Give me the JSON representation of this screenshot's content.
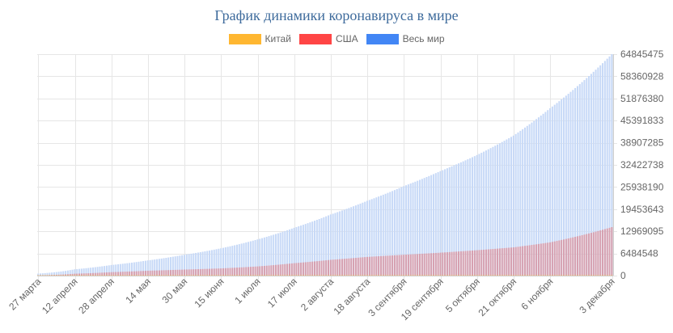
{
  "chart_data": {
    "type": "bar",
    "stacked": false,
    "title": "График динамики коронавируса в мире",
    "legend_position": "top",
    "grid": true,
    "ylim": [
      0,
      64845475
    ],
    "y_ticks": [
      0,
      6484548,
      12969095,
      19453643,
      25938190,
      32422738,
      38907285,
      45391833,
      51876380,
      58360928,
      64845475
    ],
    "x_tick_labels": [
      "27 марта",
      "12 апреля",
      "28 апреля",
      "14 мая",
      "30 мая",
      "15 июня",
      "1 июля",
      "17 июля",
      "2 августа",
      "18 августа",
      "3 сентября",
      "19 сентября",
      "5 октября",
      "21 октября",
      "6 ноября",
      "3 декабря"
    ],
    "x_tick_dates": [
      "2020-03-27",
      "2020-04-12",
      "2020-04-28",
      "2020-05-14",
      "2020-05-30",
      "2020-06-15",
      "2020-07-01",
      "2020-07-17",
      "2020-08-02",
      "2020-08-18",
      "2020-09-03",
      "2020-09-19",
      "2020-10-05",
      "2020-10-21",
      "2020-11-06",
      "2020-12-03"
    ],
    "series": [
      {
        "name": "Китай",
        "color": "#ffb731",
        "points": [
          [
            "2020-03-27",
            81900
          ],
          [
            "2020-05-01",
            82900
          ],
          [
            "2020-07-01",
            84800
          ],
          [
            "2020-09-01",
            85100
          ],
          [
            "2020-12-03",
            86600
          ]
        ]
      },
      {
        "name": "США",
        "color": "#ff4545",
        "bar_color": "#d6a0b0",
        "points": [
          [
            "2020-03-27",
            100000
          ],
          [
            "2020-04-12",
            560000
          ],
          [
            "2020-04-28",
            1010000
          ],
          [
            "2020-05-14",
            1430000
          ],
          [
            "2020-05-30",
            1770000
          ],
          [
            "2020-06-15",
            2110000
          ],
          [
            "2020-07-01",
            2690000
          ],
          [
            "2020-07-17",
            3640000
          ],
          [
            "2020-08-02",
            4620000
          ],
          [
            "2020-08-18",
            5480000
          ],
          [
            "2020-09-03",
            6110000
          ],
          [
            "2020-09-19",
            6720000
          ],
          [
            "2020-10-05",
            7440000
          ],
          [
            "2020-10-21",
            8280000
          ],
          [
            "2020-11-06",
            9740000
          ],
          [
            "2020-12-03",
            14200000
          ]
        ]
      },
      {
        "name": "Весь мир",
        "color": "#4286f5",
        "bar_color": "#c7d9f7",
        "points": [
          [
            "2020-03-27",
            590000
          ],
          [
            "2020-04-12",
            1850000
          ],
          [
            "2020-04-28",
            3100000
          ],
          [
            "2020-05-14",
            4450000
          ],
          [
            "2020-05-30",
            6100000
          ],
          [
            "2020-06-15",
            8000000
          ],
          [
            "2020-07-01",
            10600000
          ],
          [
            "2020-07-17",
            14000000
          ],
          [
            "2020-08-02",
            17900000
          ],
          [
            "2020-08-18",
            21900000
          ],
          [
            "2020-09-03",
            26200000
          ],
          [
            "2020-09-19",
            30600000
          ],
          [
            "2020-10-05",
            35300000
          ],
          [
            "2020-10-21",
            41000000
          ],
          [
            "2020-11-06",
            49000000
          ],
          [
            "2020-12-03",
            64845475
          ]
        ]
      }
    ]
  }
}
